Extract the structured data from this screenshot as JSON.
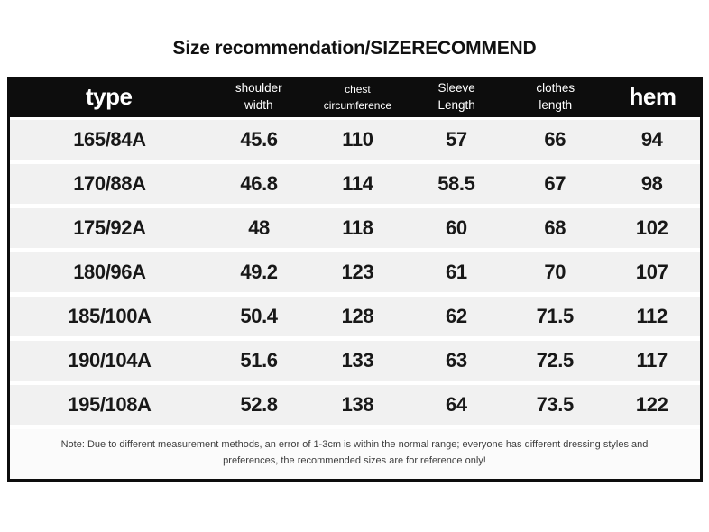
{
  "title": "Size recommendation/SIZERECOMMEND",
  "chart_data": {
    "type": "table",
    "title": "Size recommendation/SIZERECOMMEND",
    "columns": [
      {
        "label": "type",
        "lines": [
          "type"
        ]
      },
      {
        "label": "shoulder width",
        "lines": [
          "shoulder",
          "width"
        ]
      },
      {
        "label": "chest circumference",
        "lines": [
          "chest",
          "circumference"
        ]
      },
      {
        "label": "Sleeve Length",
        "lines": [
          "Sleeve",
          "Length"
        ]
      },
      {
        "label": "clothes length",
        "lines": [
          "clothes",
          "length"
        ]
      },
      {
        "label": "hem",
        "lines": [
          "hem"
        ]
      }
    ],
    "rows": [
      [
        "165/84A",
        "45.6",
        "110",
        "57",
        "66",
        "94"
      ],
      [
        "170/88A",
        "46.8",
        "114",
        "58.5",
        "67",
        "98"
      ],
      [
        "175/92A",
        "48",
        "118",
        "60",
        "68",
        "102"
      ],
      [
        "180/96A",
        "49.2",
        "123",
        "61",
        "70",
        "107"
      ],
      [
        "185/100A",
        "50.4",
        "128",
        "62",
        "71.5",
        "112"
      ],
      [
        "190/104A",
        "51.6",
        "133",
        "63",
        "72.5",
        "117"
      ],
      [
        "195/108A",
        "52.8",
        "138",
        "64",
        "73.5",
        "122"
      ]
    ],
    "note": "Note: Due to different measurement methods, an error of 1-3cm is within the normal range; everyone has different dressing styles and preferences, the recommended sizes are for reference only!"
  },
  "colors": {
    "header_bg": "#0d0d0d",
    "header_text": "#ffffff",
    "row_bg": "#f1f1f1",
    "body_text": "#181818",
    "note_text": "#3d3d3d"
  }
}
